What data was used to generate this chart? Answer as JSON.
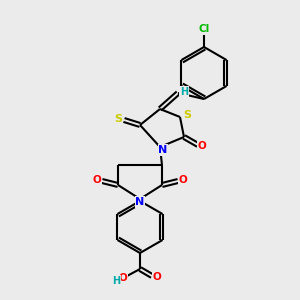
{
  "background_color": "#ebebeb",
  "bond_color": "#000000",
  "atom_colors": {
    "N": "#0000ff",
    "O": "#ff0000",
    "S": "#cccc00",
    "Cl": "#00bb00",
    "H": "#00aaaa",
    "C": "#000000"
  },
  "figsize": [
    3.0,
    3.0
  ],
  "dpi": 100
}
